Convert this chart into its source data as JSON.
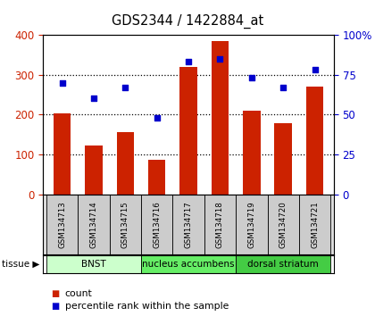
{
  "title": "GDS2344 / 1422884_at",
  "samples": [
    "GSM134713",
    "GSM134714",
    "GSM134715",
    "GSM134716",
    "GSM134717",
    "GSM134718",
    "GSM134719",
    "GSM134720",
    "GSM134721"
  ],
  "counts": [
    202,
    122,
    157,
    87,
    320,
    385,
    210,
    178,
    270
  ],
  "percentiles": [
    70,
    60,
    67,
    48,
    83,
    85,
    73,
    67,
    78
  ],
  "ylim_left": [
    0,
    400
  ],
  "ylim_right": [
    0,
    100
  ],
  "yticks_left": [
    0,
    100,
    200,
    300,
    400
  ],
  "yticks_right": [
    0,
    25,
    50,
    75,
    100
  ],
  "bar_color": "#cc2200",
  "dot_color": "#0000cc",
  "groups": [
    {
      "label": "BNST",
      "start": 0,
      "end": 3,
      "color": "#ccffcc"
    },
    {
      "label": "nucleus accumbens",
      "start": 3,
      "end": 6,
      "color": "#66ee66"
    },
    {
      "label": "dorsal striatum",
      "start": 6,
      "end": 9,
      "color": "#44cc44"
    }
  ],
  "tick_label_color_left": "#cc2200",
  "tick_label_color_right": "#0000cc",
  "legend_count": "count",
  "legend_pct": "percentile rank within the sample",
  "grid_dotted_vals": [
    100,
    200,
    300
  ]
}
